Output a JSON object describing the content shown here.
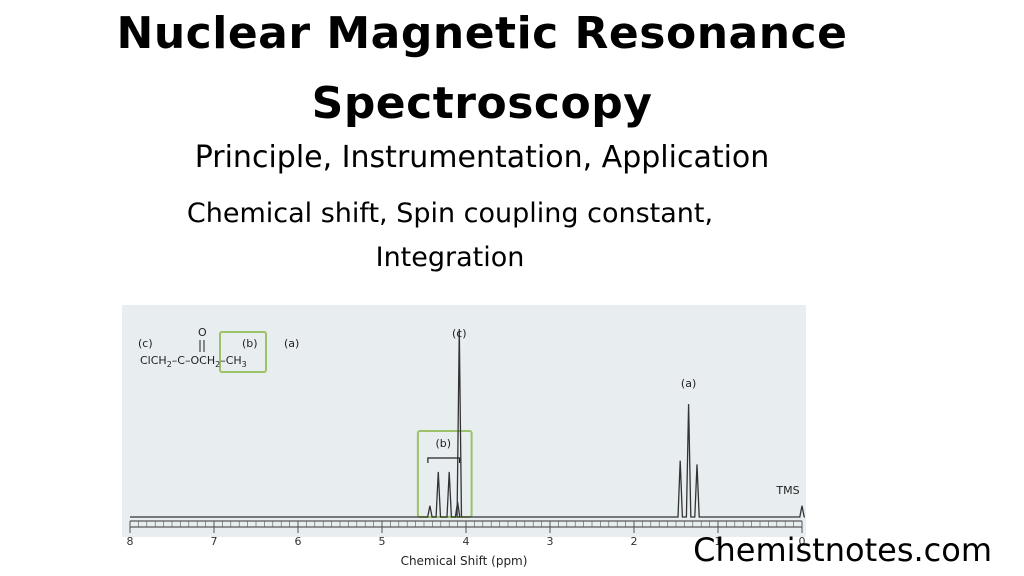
{
  "header": {
    "title_line1": "Nuclear Magnetic Resonance",
    "title_line2": "Spectroscopy",
    "subtitle": "Principle, Instrumentation, Application",
    "topics_line1": "Chemical shift, Spin coupling constant,",
    "topics_line2": "Integration"
  },
  "brand": "Chemistnotes.com",
  "colors": {
    "panel_bg": "#e8edf0",
    "highlight_box": "#9bc268",
    "trace": "#333333"
  },
  "chart_data": {
    "type": "line",
    "title": "",
    "xlabel": "Chemical Shift (ppm)",
    "ylabel": "",
    "xlim": [
      8,
      0
    ],
    "x_reversed": true,
    "ticks": [
      8,
      7,
      6,
      5,
      4,
      3,
      2,
      1,
      0
    ],
    "tick_labels": [
      "8",
      "7",
      "6",
      "5",
      "4",
      "3",
      "2",
      "1",
      "0"
    ],
    "grid": false,
    "series": [
      {
        "peaks": [
          {
            "ppm": 4.08,
            "height": 1.0,
            "group": "c"
          },
          {
            "ppm": 4.43,
            "height": 0.06,
            "group": "b"
          },
          {
            "ppm": 4.33,
            "height": 0.24,
            "group": "b"
          },
          {
            "ppm": 4.2,
            "height": 0.24,
            "group": "b"
          },
          {
            "ppm": 4.1,
            "height": 0.08,
            "group": "b"
          },
          {
            "ppm": 1.45,
            "height": 0.3,
            "group": "a"
          },
          {
            "ppm": 1.35,
            "height": 0.6,
            "group": "a"
          },
          {
            "ppm": 1.25,
            "height": 0.28,
            "group": "a"
          },
          {
            "ppm": 0.0,
            "height": 0.06,
            "group": "TMS"
          }
        ]
      }
    ],
    "annotations": [
      {
        "label": "(c)",
        "ppm": 4.08
      },
      {
        "label": "(b)",
        "ppm": 4.27
      },
      {
        "label": "(a)",
        "ppm": 1.35
      },
      {
        "label": "TMS",
        "ppm": 0.0
      }
    ],
    "structure": {
      "labels": [
        "(c)",
        "(b)",
        "(a)"
      ],
      "carbonyl_o": "O",
      "formula_parts": [
        "ClCH",
        "2",
        "–C–",
        "OCH",
        "2",
        "–CH",
        "3"
      ]
    }
  }
}
